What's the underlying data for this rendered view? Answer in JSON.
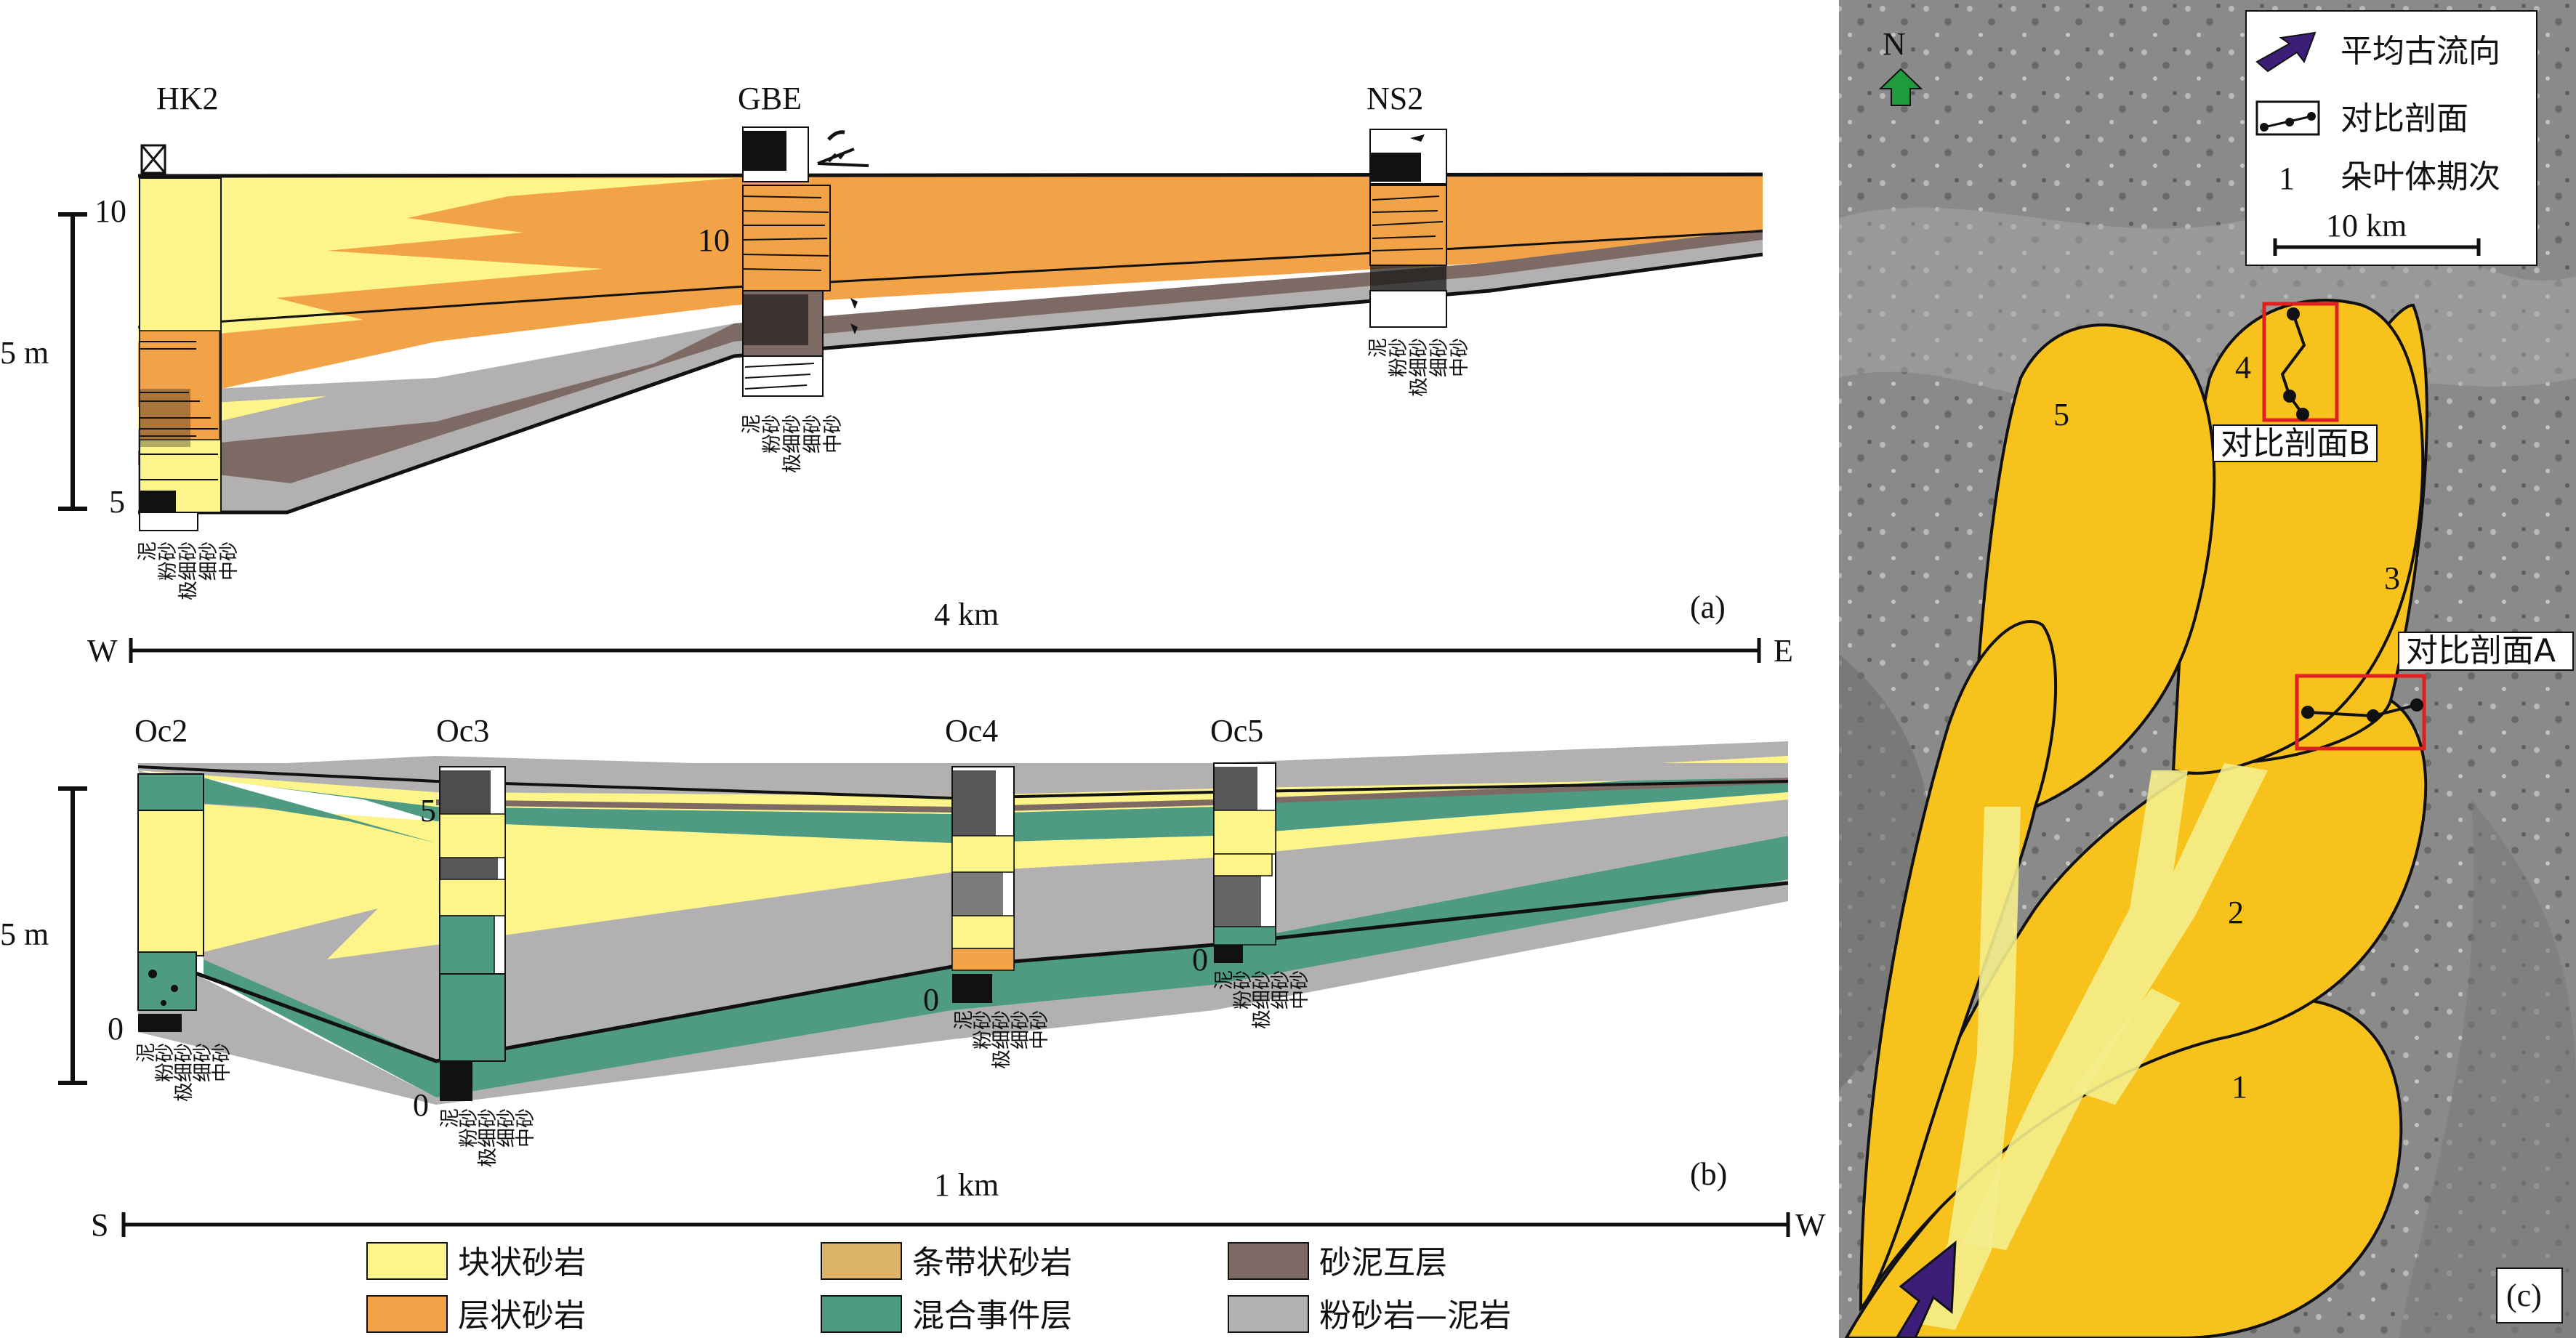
{
  "panel_a": {
    "label": "(a)",
    "wells": [
      {
        "name": "HK2"
      },
      {
        "name": "GBE"
      },
      {
        "name": "NS2"
      }
    ],
    "depth_ticks": [
      "10",
      "5"
    ],
    "gbe_depth_tick": "10",
    "scale_label": "5 m",
    "distance_label": "4 km",
    "dir_left": "W",
    "dir_right": "E"
  },
  "panel_b": {
    "label": "(b)",
    "wells": [
      {
        "name": "Oc2"
      },
      {
        "name": "Oc3"
      },
      {
        "name": "Oc4"
      },
      {
        "name": "Oc5"
      }
    ],
    "oc2_ticks": [
      "0"
    ],
    "oc3_ticks": [
      "5",
      "0"
    ],
    "oc4_ticks": [
      "0"
    ],
    "oc5_ticks": [
      "0"
    ],
    "scale_label": "5 m",
    "distance_label": "1 km",
    "dir_left": "S",
    "dir_right": "W"
  },
  "grain_scale": [
    "泥",
    "粉砂",
    "极细砂",
    "细砂",
    "中砂"
  ],
  "legend": [
    {
      "label": "块状砂岩",
      "color": "#fdf58a"
    },
    {
      "label": "条带状砂岩",
      "color": "#ddb56a"
    },
    {
      "label": "砂泥互层",
      "color": "#7e6a64"
    },
    {
      "label": "层状砂岩",
      "color": "#f2a247"
    },
    {
      "label": "混合事件层",
      "color": "#4e9a82"
    },
    {
      "label": "粉砂岩—泥岩",
      "color": "#b2b0b1"
    }
  ],
  "map": {
    "label": "(c)",
    "north": "N",
    "legend_flow": "平均古流向",
    "legend_section": "对比剖面",
    "legend_stage_key": "1",
    "legend_stage": "朵叶体期次",
    "scale_bar": "10 km",
    "section_a": "对比剖面A",
    "section_b": "对比剖面B",
    "lobe_labels": [
      "1",
      "2",
      "3",
      "4",
      "5"
    ]
  },
  "colors": {
    "lobe": "#f8c21d",
    "channel": "#f4ee8c",
    "flow_arrow": "#3c1e78",
    "north_arrow": "#1f9a3c",
    "section_box": "#e02020"
  }
}
